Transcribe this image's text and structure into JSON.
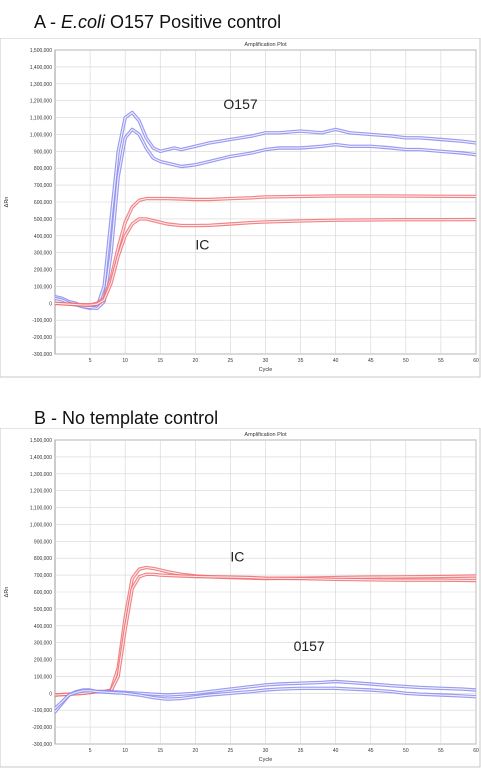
{
  "panels": [
    {
      "heading_prefix": "A - ",
      "heading_italic": "E.coli",
      "heading_suffix": " O157 Positive control"
    },
    {
      "heading_prefix": "B - No template control",
      "heading_italic": "",
      "heading_suffix": ""
    }
  ],
  "colors": {
    "blue": "#8a8aef",
    "red": "#ef6f72",
    "grid": "#d4d4d4",
    "axis": "#808080"
  },
  "chart_data": [
    {
      "type": "line",
      "title": "Amplification Plot",
      "xlabel": "Cycle",
      "ylabel": "ΔRn",
      "xlim": [
        0,
        60
      ],
      "ylim": [
        -300000,
        1500000
      ],
      "x_ticks": [
        "5",
        "10",
        "15",
        "20",
        "25",
        "30",
        "35",
        "40",
        "45",
        "50",
        "55",
        "60"
      ],
      "y_ticks": [
        "-300,000",
        "-200,000",
        "-100,000",
        "0",
        "100,000",
        "200,000",
        "300,000",
        "400,000",
        "500,000",
        "600,000",
        "700,000",
        "800,000",
        "900,000",
        "1,000,000",
        "1,100,000",
        "1,200,000",
        "1,300,000",
        "1,400,000",
        "1,500,000"
      ],
      "grid": true,
      "annotations": [
        {
          "text": "O157",
          "x": 24,
          "y": 1150000
        },
        {
          "text": "IC",
          "x": 20,
          "y": 320000
        }
      ],
      "series": [
        {
          "color": "blue",
          "x": [
            0,
            1,
            2,
            3,
            4,
            5,
            6,
            7,
            8,
            9,
            10,
            11,
            12,
            13,
            14,
            15,
            16,
            17,
            18,
            20,
            22,
            25,
            28,
            30,
            32,
            35,
            38,
            40,
            42,
            45,
            48,
            50,
            52,
            55,
            58,
            60
          ],
          "y": [
            40000,
            30000,
            10000,
            0,
            -20000,
            -30000,
            -20000,
            100000,
            500000,
            900000,
            1100000,
            1130000,
            1080000,
            980000,
            920000,
            900000,
            910000,
            920000,
            910000,
            930000,
            950000,
            970000,
            990000,
            1010000,
            1010000,
            1020000,
            1010000,
            1030000,
            1010000,
            1000000,
            990000,
            980000,
            980000,
            970000,
            960000,
            950000
          ]
        },
        {
          "color": "blue",
          "x": [
            0,
            1,
            2,
            3,
            4,
            5,
            6,
            7,
            8,
            9,
            10,
            11,
            12,
            13,
            14,
            15,
            16,
            17,
            18,
            20,
            22,
            25,
            28,
            30,
            32,
            35,
            38,
            40,
            42,
            45,
            48,
            50,
            52,
            55,
            58,
            60
          ],
          "y": [
            30000,
            20000,
            0,
            -10000,
            -20000,
            -25000,
            -30000,
            10000,
            300000,
            750000,
            980000,
            1030000,
            1000000,
            920000,
            860000,
            840000,
            830000,
            820000,
            810000,
            820000,
            840000,
            870000,
            890000,
            910000,
            920000,
            920000,
            930000,
            940000,
            930000,
            930000,
            920000,
            910000,
            910000,
            900000,
            890000,
            880000
          ]
        },
        {
          "color": "red",
          "x": [
            0,
            2,
            4,
            5,
            6,
            7,
            8,
            9,
            10,
            11,
            12,
            13,
            14,
            15,
            16,
            18,
            20,
            22,
            25,
            28,
            30,
            35,
            40,
            45,
            50,
            55,
            60
          ],
          "y": [
            0,
            -5000,
            -10000,
            -10000,
            0,
            30000,
            150000,
            330000,
            480000,
            570000,
            610000,
            620000,
            620000,
            620000,
            620000,
            618000,
            615000,
            615000,
            620000,
            625000,
            630000,
            633000,
            636000,
            636000,
            635000,
            634000,
            633000
          ]
        },
        {
          "color": "red",
          "x": [
            0,
            2,
            4,
            5,
            6,
            7,
            8,
            9,
            10,
            11,
            12,
            13,
            14,
            15,
            16,
            18,
            20,
            22,
            25,
            28,
            30,
            35,
            40,
            45,
            50,
            55,
            60
          ],
          "y": [
            0,
            -5000,
            -10000,
            -10000,
            -5000,
            20000,
            120000,
            280000,
            400000,
            470000,
            500000,
            500000,
            490000,
            480000,
            470000,
            460000,
            460000,
            462000,
            470000,
            478000,
            482000,
            488000,
            492000,
            494000,
            495000,
            495000,
            496000
          ]
        }
      ]
    },
    {
      "type": "line",
      "title": "Amplification Plot",
      "xlabel": "Cycle",
      "ylabel": "ΔRn",
      "xlim": [
        0,
        60
      ],
      "ylim": [
        -300000,
        1500000
      ],
      "x_ticks": [
        "5",
        "10",
        "15",
        "20",
        "25",
        "30",
        "35",
        "40",
        "45",
        "50",
        "55",
        "60"
      ],
      "y_ticks": [
        "-300,000",
        "-200,000",
        "-100,000",
        "0",
        "100,000",
        "200,000",
        "300,000",
        "400,000",
        "500,000",
        "600,000",
        "700,000",
        "800,000",
        "900,000",
        "1,000,000",
        "1,100,000",
        "1,200,000",
        "1,300,000",
        "1,400,000",
        "1,500,000"
      ],
      "grid": true,
      "annotations": [
        {
          "text": "IC",
          "x": 25,
          "y": 780000
        },
        {
          "text": "0157",
          "x": 34,
          "y": 250000
        }
      ],
      "series": [
        {
          "color": "red",
          "x": [
            0,
            2,
            4,
            5,
            6,
            7,
            8,
            9,
            10,
            11,
            12,
            13,
            14,
            15,
            16,
            18,
            20,
            22,
            25,
            28,
            30,
            35,
            40,
            45,
            50,
            55,
            60
          ],
          "y": [
            -10000,
            -5000,
            0,
            5000,
            10000,
            10000,
            20000,
            150000,
            450000,
            680000,
            735000,
            745000,
            740000,
            730000,
            720000,
            705000,
            695000,
            690000,
            685000,
            682000,
            680000,
            682000,
            685000,
            688000,
            690000,
            692000,
            695000
          ]
        },
        {
          "color": "red",
          "x": [
            0,
            2,
            4,
            5,
            6,
            7,
            8,
            9,
            10,
            11,
            12,
            13,
            14,
            15,
            16,
            18,
            20,
            22,
            25,
            28,
            30,
            35,
            40,
            45,
            50,
            55,
            60
          ],
          "y": [
            -10000,
            -5000,
            0,
            5000,
            10000,
            10000,
            15000,
            100000,
            380000,
            620000,
            690000,
            705000,
            705000,
            700000,
            698000,
            695000,
            692000,
            690000,
            688000,
            685000,
            682000,
            680000,
            675000,
            672000,
            670000,
            670000,
            668000
          ]
        },
        {
          "color": "blue",
          "x": [
            0,
            1,
            2,
            3,
            4,
            5,
            6,
            8,
            10,
            12,
            14,
            16,
            18,
            20,
            22,
            25,
            28,
            30,
            32,
            35,
            38,
            40,
            42,
            45,
            48,
            50,
            52,
            55,
            58,
            60
          ],
          "y": [
            -110000,
            -60000,
            -10000,
            10000,
            20000,
            20000,
            10000,
            10000,
            5000,
            0,
            -5000,
            -10000,
            -5000,
            0,
            10000,
            25000,
            40000,
            50000,
            55000,
            60000,
            65000,
            70000,
            65000,
            55000,
            45000,
            40000,
            35000,
            30000,
            25000,
            20000
          ]
        },
        {
          "color": "blue",
          "x": [
            0,
            1,
            2,
            3,
            4,
            5,
            6,
            8,
            10,
            12,
            14,
            16,
            18,
            20,
            22,
            25,
            28,
            30,
            32,
            35,
            38,
            40,
            42,
            45,
            48,
            50,
            52,
            55,
            58,
            60
          ],
          "y": [
            -90000,
            -50000,
            -10000,
            5000,
            15000,
            15000,
            10000,
            5000,
            0,
            -10000,
            -25000,
            -35000,
            -30000,
            -20000,
            -10000,
            0,
            10000,
            20000,
            25000,
            30000,
            30000,
            30000,
            25000,
            20000,
            10000,
            0,
            -5000,
            -10000,
            -15000,
            -20000
          ]
        }
      ]
    }
  ]
}
